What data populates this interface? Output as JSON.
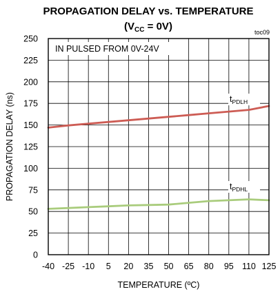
{
  "chart_data": {
    "type": "line",
    "title": "PROPAGATION DELAY vs. TEMPERATURE",
    "subtitle_parts": {
      "open": "(V",
      "sub": "CC",
      "close": " = 0V)"
    },
    "figure_code": "toc09",
    "xlabel": "TEMPERATURE (ºC)",
    "ylabel": "PROPAGATION DELAY (ns)",
    "xlim": [
      -40,
      125
    ],
    "ylim": [
      0,
      250
    ],
    "xticks": [
      -40,
      -25,
      -10,
      5,
      20,
      35,
      50,
      65,
      80,
      95,
      110,
      125
    ],
    "yticks": [
      0,
      25,
      50,
      75,
      100,
      125,
      150,
      175,
      200,
      225,
      250
    ],
    "grid": true,
    "annotation": "IN PULSED FROM 0V-24V",
    "series": [
      {
        "label_main": "t",
        "label_sub": "PDLH",
        "color": "#cd5c54",
        "x": [
          -40,
          -25,
          -10,
          5,
          20,
          35,
          50,
          65,
          80,
          95,
          110,
          125
        ],
        "y": [
          147,
          149.5,
          151.5,
          153.5,
          155.5,
          157.5,
          159.5,
          161.5,
          163.5,
          165.5,
          167.5,
          172
        ]
      },
      {
        "label_main": "t",
        "label_sub": "PDHL",
        "color": "#a9cc7c",
        "x": [
          -40,
          -25,
          -10,
          5,
          20,
          35,
          50,
          65,
          80,
          95,
          110,
          125
        ],
        "y": [
          53,
          54,
          55,
          56,
          57,
          57.5,
          58,
          60,
          62,
          63,
          64,
          63
        ]
      }
    ]
  }
}
